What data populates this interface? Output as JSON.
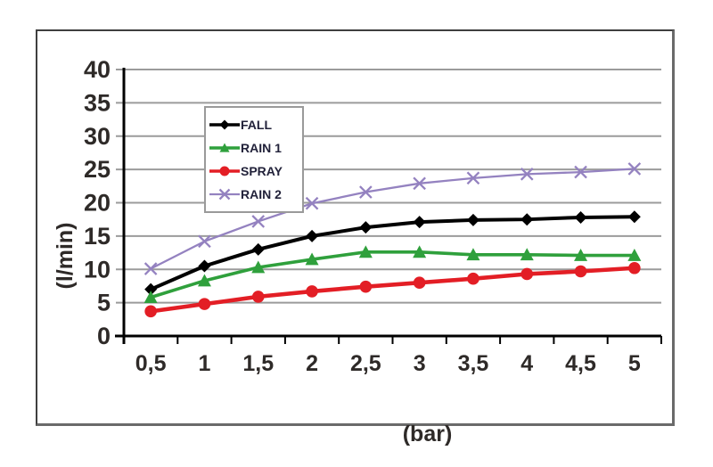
{
  "chart_data": {
    "type": "line",
    "title": "",
    "xlabel": "(bar)",
    "ylabel": "(l/min)",
    "x": [
      0.5,
      1,
      1.5,
      2,
      2.5,
      3,
      3.5,
      4,
      4.5,
      5
    ],
    "x_tick_labels": [
      "0,5",
      "1",
      "1,5",
      "2",
      "2,5",
      "3",
      "3,5",
      "4",
      "4,5",
      "5"
    ],
    "y_ticks": [
      0,
      5,
      10,
      15,
      20,
      25,
      30,
      35,
      40
    ],
    "ylim": [
      0,
      40
    ],
    "grid": "horizontal",
    "legend_position": "upper-left-inside",
    "series": [
      {
        "name": "FALL",
        "color": "#000000",
        "marker": "diamond",
        "values": [
          7.0,
          10.5,
          13.0,
          15.0,
          16.3,
          17.1,
          17.4,
          17.5,
          17.8,
          17.9
        ]
      },
      {
        "name": "RAIN 1",
        "color": "#2FA03C",
        "marker": "triangle",
        "values": [
          5.8,
          8.3,
          10.3,
          11.5,
          12.6,
          12.6,
          12.2,
          12.2,
          12.1,
          12.1
        ]
      },
      {
        "name": "SPRAY",
        "color": "#E31E25",
        "marker": "circle",
        "values": [
          3.7,
          4.8,
          5.9,
          6.7,
          7.4,
          8.0,
          8.6,
          9.3,
          9.7,
          10.2
        ]
      },
      {
        "name": "RAIN 2",
        "color": "#9482C0",
        "marker": "x",
        "values": [
          10.1,
          14.2,
          17.2,
          19.9,
          21.6,
          22.9,
          23.7,
          24.3,
          24.6,
          25.1
        ]
      }
    ]
  },
  "style": {
    "gridline_color": "#9b9b9b",
    "axis_color": "#000000",
    "tick_label_color": "#2e2a28",
    "legend_text_color": "#22223a",
    "legend_border_color": "#9a9a9a",
    "frame_border_color": "#3f3f3f",
    "background": "#ffffff"
  }
}
